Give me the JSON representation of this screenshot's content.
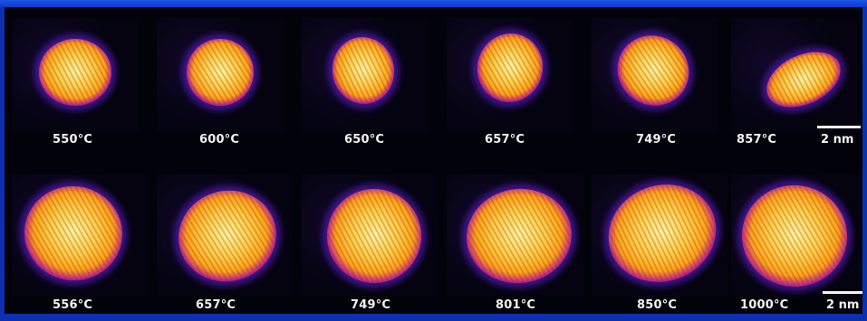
{
  "figure": {
    "rows": [
      {
        "panels": [
          {
            "label": "550°C"
          },
          {
            "label": "600°C"
          },
          {
            "label": "650°C"
          },
          {
            "label": "657°C"
          },
          {
            "label": "749°C"
          },
          {
            "label": "857°C"
          }
        ],
        "scale_bar": {
          "label": "2 nm"
        }
      },
      {
        "panels": [
          {
            "label": "556°C"
          },
          {
            "label": "657°C"
          },
          {
            "label": "749°C"
          },
          {
            "label": "801°C"
          },
          {
            "label": "850°C"
          },
          {
            "label": "1000°C"
          }
        ],
        "scale_bar": {
          "label": "2 nm"
        }
      }
    ],
    "colors": {
      "frame": "#0d2fb0",
      "background": "#02020a",
      "particle_core": "#fff6a0",
      "particle_mid": "#ffa51c",
      "particle_edge": "#c0248a",
      "particle_halo": "#5a1fc8",
      "label": "#f2f2f2"
    }
  }
}
